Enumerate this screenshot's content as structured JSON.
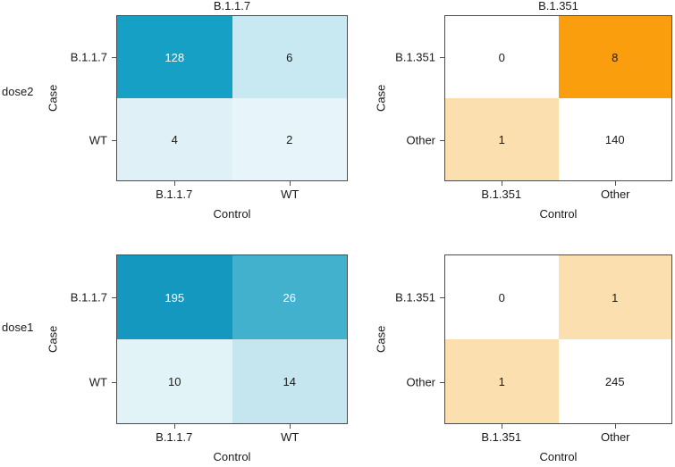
{
  "figure": {
    "background": "#FFFFFF",
    "axis_color": "#4D4D4D",
    "text_color": "#1A1A1A",
    "row_labels": [
      "dose2",
      "dose1"
    ]
  },
  "chart_data": [
    {
      "type": "heatmap",
      "row_label": "dose2",
      "title": "B.1.1.7",
      "xlabel": "Control",
      "ylabel": "Case",
      "x_categories": [
        "B.1.1.7",
        "WT"
      ],
      "y_categories": [
        "B.1.1.7",
        "WT"
      ],
      "values": [
        [
          128,
          6
        ],
        [
          4,
          2
        ]
      ],
      "cell_colors": [
        [
          "#16A0C6",
          "#C9E9F2"
        ],
        [
          "#DFF1F7",
          "#E7F5FA"
        ]
      ],
      "text_colors": [
        [
          "#FFFFFF",
          "#1A1A1A"
        ],
        [
          "#1A1A1A",
          "#1A1A1A"
        ]
      ]
    },
    {
      "type": "heatmap",
      "row_label": "dose2",
      "title": "B.1.351",
      "xlabel": "Control",
      "ylabel": "Case",
      "x_categories": [
        "B.1.351",
        "Other"
      ],
      "y_categories": [
        "B.1.351",
        "Other"
      ],
      "values": [
        [
          0,
          8
        ],
        [
          1,
          140
        ]
      ],
      "cell_colors": [
        [
          "#FFFFFF",
          "#FB9E0D"
        ],
        [
          "#FBDFAE",
          "#FFFFFF"
        ]
      ],
      "text_colors": [
        [
          "#1A1A1A",
          "#1A1A1A"
        ],
        [
          "#1A1A1A",
          "#1A1A1A"
        ]
      ]
    },
    {
      "type": "heatmap",
      "row_label": "dose1",
      "title": "",
      "xlabel": "Control",
      "ylabel": "Case",
      "x_categories": [
        "B.1.1.7",
        "WT"
      ],
      "y_categories": [
        "B.1.1.7",
        "WT"
      ],
      "values": [
        [
          195,
          26
        ],
        [
          10,
          14
        ]
      ],
      "cell_colors": [
        [
          "#1598BF",
          "#41B1CE"
        ],
        [
          "#E2F3F8",
          "#C5E6EF"
        ]
      ],
      "text_colors": [
        [
          "#FFFFFF",
          "#FFFFFF"
        ],
        [
          "#1A1A1A",
          "#1A1A1A"
        ]
      ]
    },
    {
      "type": "heatmap",
      "row_label": "dose1",
      "title": "",
      "xlabel": "Control",
      "ylabel": "Case",
      "x_categories": [
        "B.1.351",
        "Other"
      ],
      "y_categories": [
        "B.1.351",
        "Other"
      ],
      "values": [
        [
          0,
          1
        ],
        [
          1,
          245
        ]
      ],
      "cell_colors": [
        [
          "#FFFFFF",
          "#FBDFAE"
        ],
        [
          "#FBDFAE",
          "#FFFFFF"
        ]
      ],
      "text_colors": [
        [
          "#1A1A1A",
          "#1A1A1A"
        ],
        [
          "#1A1A1A",
          "#1A1A1A"
        ]
      ]
    }
  ]
}
